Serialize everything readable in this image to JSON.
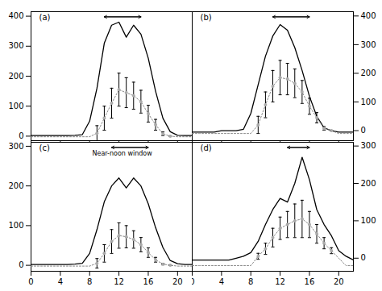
{
  "chart_data": [
    {
      "type": "line",
      "title": "(a)",
      "x": [
        0,
        1,
        2,
        3,
        4,
        5,
        6,
        7,
        8,
        9,
        10,
        11,
        12,
        13,
        14,
        15,
        16,
        17,
        18,
        19,
        20,
        21,
        22
      ],
      "xlim": [
        0,
        22
      ],
      "xticks": [
        0,
        4,
        8,
        12,
        16,
        20
      ],
      "ylim": [
        -15,
        415
      ],
      "yticks": [
        0,
        100,
        200,
        300,
        400
      ],
      "tick_labels": "y",
      "arrow_x": [
        10,
        15
      ],
      "series": [
        {
          "type": "line",
          "color": "#000000",
          "line_style": "solid",
          "values": [
            2,
            2,
            2,
            2,
            2,
            2,
            3,
            5,
            50,
            160,
            310,
            370,
            380,
            330,
            370,
            340,
            260,
            150,
            60,
            15,
            3,
            2,
            2
          ]
        },
        {
          "type": "line",
          "color": "#888888",
          "line_style": "dotted",
          "values": [
            -2,
            -2,
            -2,
            -2,
            -2,
            -2,
            -2,
            -2,
            -2,
            10,
            60,
            110,
            155,
            145,
            135,
            115,
            75,
            38,
            8,
            0,
            -2,
            -2,
            -2
          ]
        },
        {
          "type": "errorbar",
          "color": "#000000",
          "x": [
            9,
            10,
            11,
            12,
            13,
            14,
            15,
            16,
            17,
            18,
            19
          ],
          "values": [
            10,
            60,
            110,
            155,
            145,
            135,
            115,
            75,
            38,
            8,
            0
          ],
          "error": [
            25,
            40,
            50,
            55,
            50,
            45,
            38,
            28,
            18,
            6,
            0
          ]
        },
        {
          "type": "scatter",
          "color": "#aaaaaa",
          "marker": "circle",
          "x": [
            9,
            10,
            11,
            12,
            13,
            14,
            15,
            16,
            17,
            18,
            19
          ],
          "values": [
            10,
            60,
            110,
            155,
            145,
            135,
            115,
            75,
            38,
            8,
            0
          ]
        }
      ]
    },
    {
      "type": "line",
      "title": "(b)",
      "x": [
        0,
        1,
        2,
        3,
        4,
        5,
        6,
        7,
        8,
        9,
        10,
        11,
        12,
        13,
        14,
        15,
        16,
        17,
        18,
        19,
        20,
        21,
        22
      ],
      "xlim": [
        0,
        22
      ],
      "xticks": [
        0,
        4,
        8,
        12,
        16,
        20
      ],
      "ylim": [
        -35,
        415
      ],
      "yticks": [
        0,
        100,
        200,
        300,
        400
      ],
      "tick_labels": "y",
      "arrow_x": [
        11,
        16
      ],
      "series": [
        {
          "type": "line",
          "color": "#000000",
          "line_style": "solid",
          "values": [
            -5,
            -5,
            -5,
            -5,
            0,
            0,
            0,
            5,
            60,
            160,
            260,
            330,
            370,
            350,
            290,
            210,
            120,
            50,
            10,
            0,
            -5,
            -5,
            -5
          ]
        },
        {
          "type": "line",
          "color": "#888888",
          "line_style": "dotted",
          "values": [
            -10,
            -10,
            -10,
            -10,
            -10,
            -10,
            -10,
            -10,
            -10,
            20,
            90,
            155,
            185,
            180,
            165,
            135,
            85,
            45,
            8,
            0,
            -10,
            -10,
            -10
          ]
        },
        {
          "type": "errorbar",
          "color": "#000000",
          "x": [
            9,
            10,
            11,
            12,
            13,
            14,
            15,
            16,
            17,
            18,
            19
          ],
          "values": [
            20,
            90,
            155,
            185,
            180,
            165,
            135,
            85,
            45,
            8,
            0
          ],
          "error": [
            30,
            45,
            55,
            60,
            55,
            50,
            40,
            28,
            18,
            6,
            0
          ]
        },
        {
          "type": "scatter",
          "color": "#aaaaaa",
          "marker": "circle",
          "x": [
            9,
            10,
            11,
            12,
            13,
            14,
            15,
            16,
            17,
            18,
            19
          ],
          "values": [
            20,
            90,
            155,
            185,
            180,
            165,
            135,
            85,
            45,
            8,
            0
          ]
        }
      ]
    },
    {
      "type": "line",
      "title": "(c)",
      "x": [
        0,
        1,
        2,
        3,
        4,
        5,
        6,
        7,
        8,
        9,
        10,
        11,
        12,
        13,
        14,
        15,
        16,
        17,
        18,
        19,
        20,
        21,
        22
      ],
      "xlim": [
        0,
        22
      ],
      "xticks": [
        0,
        4,
        8,
        12,
        16,
        20
      ],
      "ylim": [
        -15,
        310
      ],
      "yticks": [
        0,
        100,
        200,
        300
      ],
      "arrow_x": [
        11,
        16
      ],
      "annotations": [
        "Near-noon window"
      ],
      "series": [
        {
          "type": "line",
          "color": "#000000",
          "line_style": "solid",
          "values": [
            2,
            2,
            2,
            2,
            2,
            2,
            3,
            5,
            30,
            90,
            160,
            200,
            220,
            195,
            220,
            200,
            155,
            95,
            45,
            12,
            4,
            2,
            2
          ]
        },
        {
          "type": "line",
          "color": "#888888",
          "line_style": "dotted",
          "values": [
            -2,
            -2,
            -2,
            -2,
            -2,
            -2,
            -2,
            -2,
            -2,
            5,
            30,
            60,
            75,
            72,
            65,
            52,
            32,
            14,
            3,
            0,
            -2,
            -2,
            -2
          ]
        },
        {
          "type": "errorbar",
          "color": "#000000",
          "x": [
            9,
            10,
            11,
            12,
            13,
            14,
            15,
            16,
            17,
            18,
            19
          ],
          "values": [
            5,
            30,
            60,
            75,
            72,
            65,
            52,
            32,
            14,
            3,
            0
          ],
          "error": [
            12,
            22,
            30,
            32,
            28,
            22,
            18,
            12,
            6,
            2,
            0
          ]
        },
        {
          "type": "scatter",
          "color": "#aaaaaa",
          "marker": "circle",
          "x": [
            9,
            10,
            11,
            12,
            13,
            14,
            15,
            16,
            17,
            18,
            19
          ],
          "values": [
            5,
            30,
            60,
            75,
            72,
            65,
            52,
            32,
            14,
            3,
            0
          ]
        }
      ]
    },
    {
      "type": "line",
      "title": "(d)",
      "x": [
        0,
        1,
        2,
        3,
        4,
        5,
        6,
        7,
        8,
        9,
        10,
        11,
        12,
        13,
        14,
        15,
        16,
        17,
        18,
        19,
        20,
        21,
        22
      ],
      "xlim": [
        0,
        22
      ],
      "xticks": [
        0,
        4,
        8,
        12,
        16,
        20
      ],
      "ylim": [
        -35,
        310
      ],
      "yticks": [
        0,
        100,
        200,
        300
      ],
      "arrow_x": [
        13,
        16
      ],
      "series": [
        {
          "type": "line",
          "color": "#000000",
          "line_style": "solid",
          "values": [
            -5,
            -5,
            -5,
            -5,
            -5,
            -5,
            0,
            5,
            15,
            45,
            90,
            130,
            160,
            150,
            200,
            270,
            210,
            130,
            90,
            60,
            20,
            5,
            -5
          ]
        },
        {
          "type": "line",
          "color": "#888888",
          "line_style": "dotted",
          "values": [
            -20,
            -20,
            -20,
            -20,
            -20,
            -20,
            -20,
            -20,
            -20,
            5,
            25,
            55,
            80,
            90,
            100,
            105,
            90,
            65,
            40,
            20,
            0,
            -20,
            -20
          ]
        },
        {
          "type": "errorbar",
          "color": "#000000",
          "x": [
            9,
            10,
            11,
            12,
            13,
            14,
            15,
            16,
            17,
            18,
            19
          ],
          "values": [
            5,
            25,
            55,
            80,
            90,
            100,
            105,
            90,
            65,
            40,
            20
          ],
          "error": [
            8,
            15,
            25,
            30,
            35,
            45,
            50,
            35,
            25,
            15,
            8
          ]
        },
        {
          "type": "scatter",
          "color": "#aaaaaa",
          "marker": "circle",
          "x": [
            9,
            10,
            11,
            12,
            13,
            14,
            15,
            16,
            17,
            18,
            19
          ],
          "values": [
            5,
            25,
            55,
            80,
            90,
            100,
            105,
            90,
            65,
            40,
            20
          ]
        }
      ]
    }
  ]
}
